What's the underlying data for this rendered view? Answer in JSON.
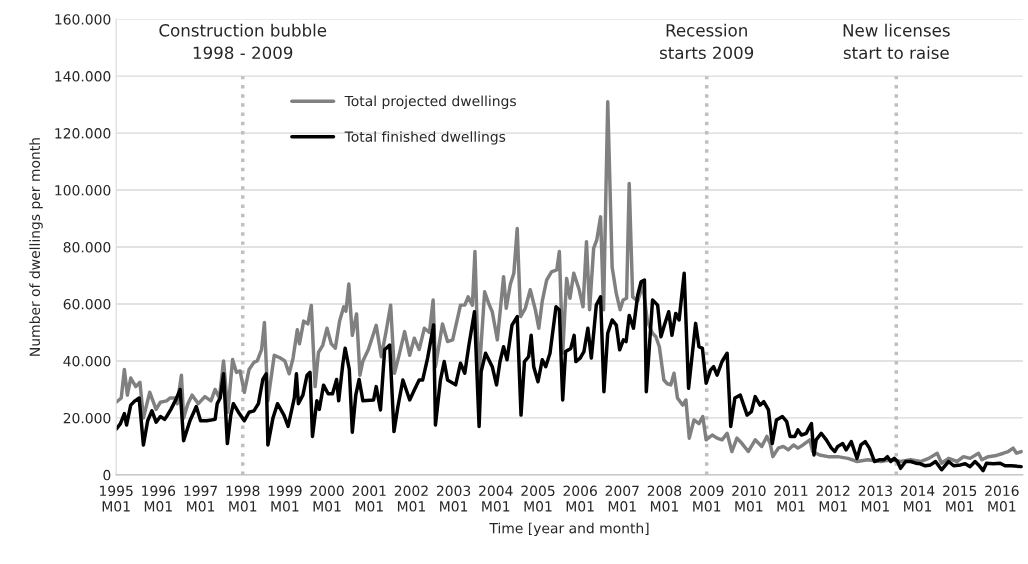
{
  "chart_data": {
    "type": "line",
    "xlabel": "Time [year and month]",
    "ylabel": "Number of dwellings per month",
    "xlim": [
      "1995-01",
      "2016-07"
    ],
    "ylim": [
      0,
      160000
    ],
    "xticks": [
      {
        "value": "1995-01",
        "label": "1995\nM01"
      },
      {
        "value": "1996-01",
        "label": "1996\nM01"
      },
      {
        "value": "1997-01",
        "label": "1997\nM01"
      },
      {
        "value": "1998-01",
        "label": "1998\nM01"
      },
      {
        "value": "1999-01",
        "label": "1999\nM01"
      },
      {
        "value": "2000-01",
        "label": "2000\nM01"
      },
      {
        "value": "2001-01",
        "label": "2001\nM01"
      },
      {
        "value": "2002-01",
        "label": "2002\nM01"
      },
      {
        "value": "2003-01",
        "label": "2003\nM01"
      },
      {
        "value": "2004-01",
        "label": "2004\nM01"
      },
      {
        "value": "2005-01",
        "label": "2005\nM01"
      },
      {
        "value": "2006-01",
        "label": "2006\nM01"
      },
      {
        "value": "2007-01",
        "label": "2007\nM01"
      },
      {
        "value": "2008-01",
        "label": "2008\nM01"
      },
      {
        "value": "2009-01",
        "label": "2009\nM01"
      },
      {
        "value": "2010-01",
        "label": "2010\nM01"
      },
      {
        "value": "2011-01",
        "label": "2011\nM01"
      },
      {
        "value": "2012-01",
        "label": "2012\nM01"
      },
      {
        "value": "2013-01",
        "label": "2013\nM01"
      },
      {
        "value": "2014-01",
        "label": "2014\nM01"
      },
      {
        "value": "2015-01",
        "label": "2015\nM01"
      },
      {
        "value": "2016-01",
        "label": "2016\nM01"
      }
    ],
    "yticks": [
      0,
      {
        "value": 20000,
        "label": "20.000"
      },
      {
        "value": 40000,
        "label": "40.000"
      },
      {
        "value": 60000,
        "label": "60.000"
      },
      {
        "value": 80000,
        "label": "80.000"
      },
      {
        "value": 100000,
        "label": "100.000"
      },
      {
        "value": 120000,
        "label": "120.000"
      },
      {
        "value": 140000,
        "label": "140.000"
      },
      {
        "value": 160000,
        "label": "160.000"
      }
    ],
    "grid": "y",
    "legend": "top left",
    "line_style": "solid",
    "ref_lines": [
      {
        "axis": "x",
        "value": "1998-01",
        "label": "Construction bubble\n1998 - 2009",
        "color": "#bfbfbf",
        "line_style": "dotted"
      },
      {
        "axis": "x",
        "value": "2009-01",
        "label": "Recession\nstarts 2009",
        "color": "#bfbfbf",
        "line_style": "dotted"
      },
      {
        "axis": "x",
        "value": "2013-07",
        "label": "New licenses\nstart to raise",
        "color": "#bfbfbf",
        "line_style": "dotted"
      }
    ],
    "series": [
      {
        "name": "Total projected dwellings",
        "color": "#808080",
        "x": [
          "1995-01-01",
          "1995-02-14",
          "1995-03-13",
          "1995-04-08",
          "1995-05-07",
          "1995-06-20",
          "1995-07-26",
          "1995-08-25",
          "1995-10-19",
          "1995-12-13",
          "1996-01-19",
          "1996-03-13",
          "1996-04-11",
          "1996-05-25",
          "1996-06-13",
          "1996-07-19",
          "1996-08-07",
          "1996-09-13",
          "1996-10-19",
          "1996-12-13",
          "1997-02-07",
          "1997-04-01",
          "1997-05-07",
          "1997-06-13",
          "1997-07-19",
          "1997-08-25",
          "1997-10-05",
          "1997-11-07",
          "1997-12-09",
          "1998-01-15",
          "1998-02-25",
          "1998-04-08",
          "1998-05-07",
          "1998-06-13",
          "1998-07-08",
          "1998-08-07",
          "1998-10-01",
          "1998-11-25",
          "1999-01-01",
          "1999-02-07",
          "1999-03-13",
          "1999-04-19",
          "1999-05-07",
          "1999-06-13",
          "1999-07-19",
          "1999-08-18",
          "1999-09-20",
          "1999-10-19",
          "1999-11-25",
          "2000-01-01",
          "2000-02-07",
          "2000-03-13",
          "2000-04-19",
          "2000-05-25",
          "2000-06-13",
          "2000-07-08",
          "2000-08-07",
          "2000-09-13",
          "2000-10-12",
          "2000-11-07",
          "2000-12-24",
          "2001-03-02",
          "2001-04-15",
          "2001-05-25",
          "2001-07-05",
          "2001-08-07",
          "2001-09-20",
          "2001-11-03",
          "2001-12-17",
          "2002-01-26",
          "2002-03-09",
          "2002-04-23",
          "2002-06-06",
          "2002-07-08",
          "2002-07-28",
          "2002-09-27",
          "2002-11-10",
          "2002-12-24",
          "2003-03-02",
          "2003-04-08",
          "2003-05-07",
          "2003-06-13",
          "2003-07-05",
          "2003-08-07",
          "2003-09-27",
          "2003-11-03",
          "2003-12-02",
          "2004-01-15",
          "2004-03-09",
          "2004-04-01",
          "2004-05-07",
          "2004-06-06",
          "2004-07-05",
          "2004-08-03",
          "2004-09-13",
          "2004-10-26",
          "2004-12-09",
          "2005-01-08",
          "2005-02-07",
          "2005-03-17",
          "2005-04-28",
          "2005-06-13",
          "2005-07-05",
          "2005-08-03",
          "2005-09-06",
          "2005-10-05",
          "2005-11-07",
          "2005-12-24",
          "2006-01-26",
          "2006-02-25",
          "2006-03-24",
          "2006-04-28",
          "2006-05-25",
          "2006-06-27",
          "2006-07-23",
          "2006-08-28",
          "2006-10-05",
          "2006-11-10",
          "2006-12-13",
          "2007-01-08",
          "2007-02-07",
          "2007-03-02",
          "2007-04-01",
          "2007-05-14",
          "2007-06-27",
          "2007-08-07",
          "2007-09-20",
          "2007-10-19",
          "2007-11-18",
          "2007-12-27",
          "2008-01-26",
          "2008-02-25",
          "2008-03-24",
          "2008-04-23",
          "2008-06-06",
          "2008-07-05",
          "2008-08-03",
          "2008-09-13",
          "2008-10-26",
          "2008-11-28",
          "2008-12-27",
          "2009-02-18",
          "2009-04-01",
          "2009-05-14",
          "2009-06-27",
          "2009-08-07",
          "2009-09-20",
          "2009-11-03",
          "2009-12-27",
          "2010-02-25",
          "2010-04-23",
          "2010-06-06",
          "2010-07-05",
          "2010-07-28",
          "2010-09-13",
          "2010-10-26",
          "2010-12-09",
          "2011-01-23",
          "2011-03-02",
          "2011-04-15",
          "2011-06-13",
          "2011-07-08",
          "2011-09-06",
          "2011-11-18",
          "2012-02-10",
          "2012-05-07",
          "2012-07-28",
          "2012-10-26",
          "2013-02-18",
          "2013-05-14",
          "2013-08-07",
          "2013-11-03",
          "2014-01-26",
          "2014-04-08",
          "2014-06-20",
          "2014-07-28",
          "2014-09-27",
          "2014-12-09",
          "2015-02-03",
          "2015-04-01",
          "2015-06-13",
          "2015-07-12",
          "2015-09-06",
          "2015-11-03",
          "2016-01-15",
          "2016-02-25",
          "2016-04-08",
          "2016-05-07",
          "2016-06-17"
        ],
        "values": [
          25500,
          27000,
          37000,
          28000,
          34000,
          31000,
          32500,
          20000,
          29000,
          23000,
          25500,
          26000,
          27000,
          27000,
          25000,
          35000,
          20000,
          25000,
          28000,
          25000,
          27500,
          26000,
          30000,
          27000,
          40000,
          22000,
          40500,
          36000,
          36500,
          29000,
          37000,
          39500,
          40000,
          44000,
          53500,
          26000,
          42000,
          41000,
          40000,
          35500,
          41000,
          51000,
          46000,
          54000,
          53000,
          59500,
          31000,
          43000,
          45500,
          51500,
          46000,
          44500,
          54000,
          59000,
          57500,
          67000,
          49000,
          56500,
          35000,
          40000,
          44000,
          52500,
          41500,
          50000,
          59600,
          35700,
          42700,
          50300,
          42000,
          48000,
          44000,
          51500,
          50000,
          61400,
          38000,
          53000,
          46800,
          47400,
          59600,
          59600,
          62500,
          59600,
          78400,
          33300,
          64300,
          60000,
          57300,
          47400,
          69600,
          58500,
          67000,
          70800,
          86500,
          55600,
          58500,
          65000,
          58000,
          51500,
          61000,
          68400,
          71300,
          72000,
          78400,
          42700,
          69000,
          62000,
          70800,
          65000,
          59000,
          81900,
          58000,
          79500,
          82500,
          90600,
          58000,
          131000,
          73000,
          63700,
          58000,
          61400,
          62000,
          102300,
          62500,
          61000,
          66700,
          53800,
          49700,
          48500,
          45000,
          33300,
          32000,
          31600,
          35700,
          27000,
          24500,
          26300,
          12900,
          19300,
          18000,
          20500,
          12300,
          14000,
          12900,
          12300,
          14600,
          8200,
          12900,
          11000,
          8200,
          12300,
          10000,
          13500,
          11000,
          6400,
          9400,
          10000,
          8800,
          10500,
          9400,
          10500,
          12300,
          8200,
          7000,
          6400,
          6400,
          5800,
          4700,
          5300,
          4700,
          5300,
          4700,
          5300,
          4700,
          5800,
          7600,
          4100,
          5800,
          4700,
          6400,
          5800,
          7600,
          5300,
          6400,
          6700,
          7600,
          8200,
          9400,
          7600,
          8200
        ]
      },
      {
        "name": "Total finished dwellings",
        "color": "#000000",
        "x": [
          "1995-01-01",
          "1995-02-07",
          "1995-03-13",
          "1995-04-01",
          "1995-05-07",
          "1995-06-13",
          "1995-07-19",
          "1995-08-25",
          "1995-10-01",
          "1995-11-07",
          "1995-12-13",
          "1996-01-19",
          "1996-02-25",
          "1996-03-13",
          "1996-04-19",
          "1996-06-02",
          "1996-07-08",
          "1996-08-07",
          "1996-10-01",
          "1996-11-25",
          "1997-01-01",
          "1997-02-25",
          "1997-05-07",
          "1997-05-25",
          "1997-06-20",
          "1997-07-19",
          "1997-08-21",
          "1997-09-20",
          "1997-10-12",
          "1997-11-25",
          "1998-01-15",
          "1998-02-25",
          "1998-04-08",
          "1998-05-17",
          "1998-06-24",
          "1998-07-23",
          "1998-08-07",
          "1998-09-20",
          "1998-10-29",
          "1998-12-24",
          "1999-01-29",
          "1999-03-24",
          "1999-04-11",
          "1999-04-28",
          "1999-06-06",
          "1999-07-12",
          "1999-08-07",
          "1999-08-28",
          "1999-10-05",
          "1999-10-26",
          "1999-12-02",
          "2000-01-11",
          "2000-02-18",
          "2000-03-24",
          "2000-04-11",
          "2000-05-17",
          "2000-06-06",
          "2000-07-12",
          "2000-08-07",
          "2000-09-06",
          "2000-10-05",
          "2000-11-07",
          "2001-02-07",
          "2001-03-02",
          "2001-04-08",
          "2001-05-14",
          "2001-06-27",
          "2001-08-03",
          "2001-09-06",
          "2001-10-19",
          "2001-12-17",
          "2002-01-26",
          "2002-03-09",
          "2002-04-08",
          "2002-05-21",
          "2002-07-12",
          "2002-07-28",
          "2002-09-09",
          "2002-10-12",
          "2002-11-10",
          "2003-01-19",
          "2003-03-02",
          "2003-04-08",
          "2003-05-14",
          "2003-07-01",
          "2003-08-10",
          "2003-08-28",
          "2003-10-05",
          "2003-12-02",
          "2004-01-08",
          "2004-02-07",
          "2004-03-09",
          "2004-04-08",
          "2004-05-21",
          "2004-07-05",
          "2004-08-07",
          "2004-09-06",
          "2004-10-12",
          "2004-11-03",
          "2004-11-25",
          "2005-01-01",
          "2005-02-07",
          "2005-03-09",
          "2005-04-15",
          "2005-06-06",
          "2005-07-05",
          "2005-08-03",
          "2005-08-28",
          "2005-10-12",
          "2005-11-10",
          "2005-11-25",
          "2006-01-01",
          "2006-02-03",
          "2006-03-09",
          "2006-04-08",
          "2006-05-21",
          "2006-06-27",
          "2006-07-26",
          "2006-08-28",
          "2006-10-05",
          "2006-11-10",
          "2006-12-09",
          "2007-01-11",
          "2007-02-03",
          "2007-03-02",
          "2007-04-08",
          "2007-05-14",
          "2007-06-13",
          "2007-07-12",
          "2007-07-28",
          "2007-09-20",
          "2007-11-03",
          "2007-12-02",
          "2008-01-01",
          "2008-02-07",
          "2008-03-06",
          "2008-04-08",
          "2008-05-07",
          "2008-06-20",
          "2008-07-28",
          "2008-09-27",
          "2008-10-26",
          "2008-11-25",
          "2008-12-27",
          "2009-02-03",
          "2009-03-02",
          "2009-04-01",
          "2009-05-14",
          "2009-06-27",
          "2009-07-28",
          "2009-09-02",
          "2009-10-19",
          "2009-12-17",
          "2010-01-23",
          "2010-02-25",
          "2010-04-08",
          "2010-05-10",
          "2010-06-20",
          "2010-07-23",
          "2010-08-28",
          "2010-10-19",
          "2010-11-25",
          "2010-12-24",
          "2011-02-03",
          "2011-03-02",
          "2011-04-01",
          "2011-05-14",
          "2011-05-28",
          "2011-06-27",
          "2011-07-19",
          "2011-08-07",
          "2011-09-20",
          "2011-11-03",
          "2011-12-17",
          "2012-01-15",
          "2012-02-10",
          "2012-03-24",
          "2012-04-23",
          "2012-06-06",
          "2012-07-05",
          "2012-07-26",
          "2012-08-28",
          "2012-10-05",
          "2012-11-10",
          "2012-12-24",
          "2013-02-03",
          "2013-03-17",
          "2013-04-15",
          "2013-05-14",
          "2013-06-13",
          "2013-07-12",
          "2013-08-07",
          "2013-09-20",
          "2013-11-03",
          "2013-12-17",
          "2014-01-26",
          "2014-03-09",
          "2014-04-23",
          "2014-06-06",
          "2014-07-28",
          "2014-09-27",
          "2014-11-10",
          "2015-01-08",
          "2015-02-18",
          "2015-04-01",
          "2015-05-14",
          "2015-06-13",
          "2015-07-23",
          "2015-08-21",
          "2015-10-19",
          "2015-12-17",
          "2016-01-29",
          "2016-03-24",
          "2016-06-17"
        ],
        "values": [
          16000,
          18000,
          21500,
          17500,
          24500,
          26000,
          27000,
          10500,
          19000,
          22500,
          18500,
          20500,
          19500,
          20500,
          23000,
          26500,
          30000,
          12000,
          19000,
          24000,
          19000,
          19000,
          19500,
          25000,
          27000,
          35500,
          11000,
          21000,
          25000,
          22000,
          19000,
          22000,
          22500,
          25000,
          33500,
          35500,
          10500,
          20000,
          25000,
          21000,
          17000,
          27000,
          35500,
          25000,
          28000,
          35000,
          36000,
          13500,
          26000,
          23000,
          31500,
          28500,
          28500,
          33500,
          26000,
          39000,
          44500,
          37000,
          15000,
          28000,
          33500,
          26000,
          26300,
          31000,
          22800,
          43900,
          45600,
          15200,
          24000,
          33300,
          26300,
          29800,
          33300,
          33300,
          41000,
          52600,
          17500,
          33300,
          39800,
          33300,
          31600,
          39200,
          35700,
          45600,
          57300,
          17000,
          36300,
          42700,
          38000,
          31600,
          39800,
          45000,
          40400,
          52600,
          55600,
          21000,
          39800,
          41500,
          49000,
          38000,
          32700,
          40400,
          38000,
          42700,
          59000,
          57900,
          26300,
          43300,
          44400,
          49000,
          39800,
          41000,
          43300,
          51500,
          41000,
          59600,
          62500,
          29200,
          49700,
          54400,
          52600,
          43900,
          47400,
          46800,
          56000,
          51500,
          63000,
          67800,
          68400,
          29200,
          61400,
          59600,
          48500,
          52600,
          57300,
          49000,
          56700,
          54400,
          70800,
          30400,
          53200,
          45000,
          44400,
          32200,
          36800,
          38000,
          35000,
          39800,
          42700,
          17000,
          27000,
          28000,
          21000,
          22200,
          27500,
          24500,
          25700,
          22800,
          11000,
          19300,
          20500,
          18700,
          13500,
          13500,
          15800,
          14000,
          14600,
          15800,
          18000,
          7000,
          12300,
          14600,
          12300,
          9400,
          8200,
          10000,
          11000,
          8800,
          11700,
          8200,
          5800,
          10500,
          11700,
          9400,
          4700,
          5300,
          5300,
          6400,
          4700,
          5800,
          4700,
          2300,
          4700,
          4700,
          4100,
          3900,
          3200,
          3500,
          4700,
          1800,
          4700,
          3200,
          3500,
          3900,
          2900,
          4700,
          3500,
          1500,
          4100,
          3900,
          4100,
          3200,
          3200,
          2900
        ]
      }
    ]
  }
}
